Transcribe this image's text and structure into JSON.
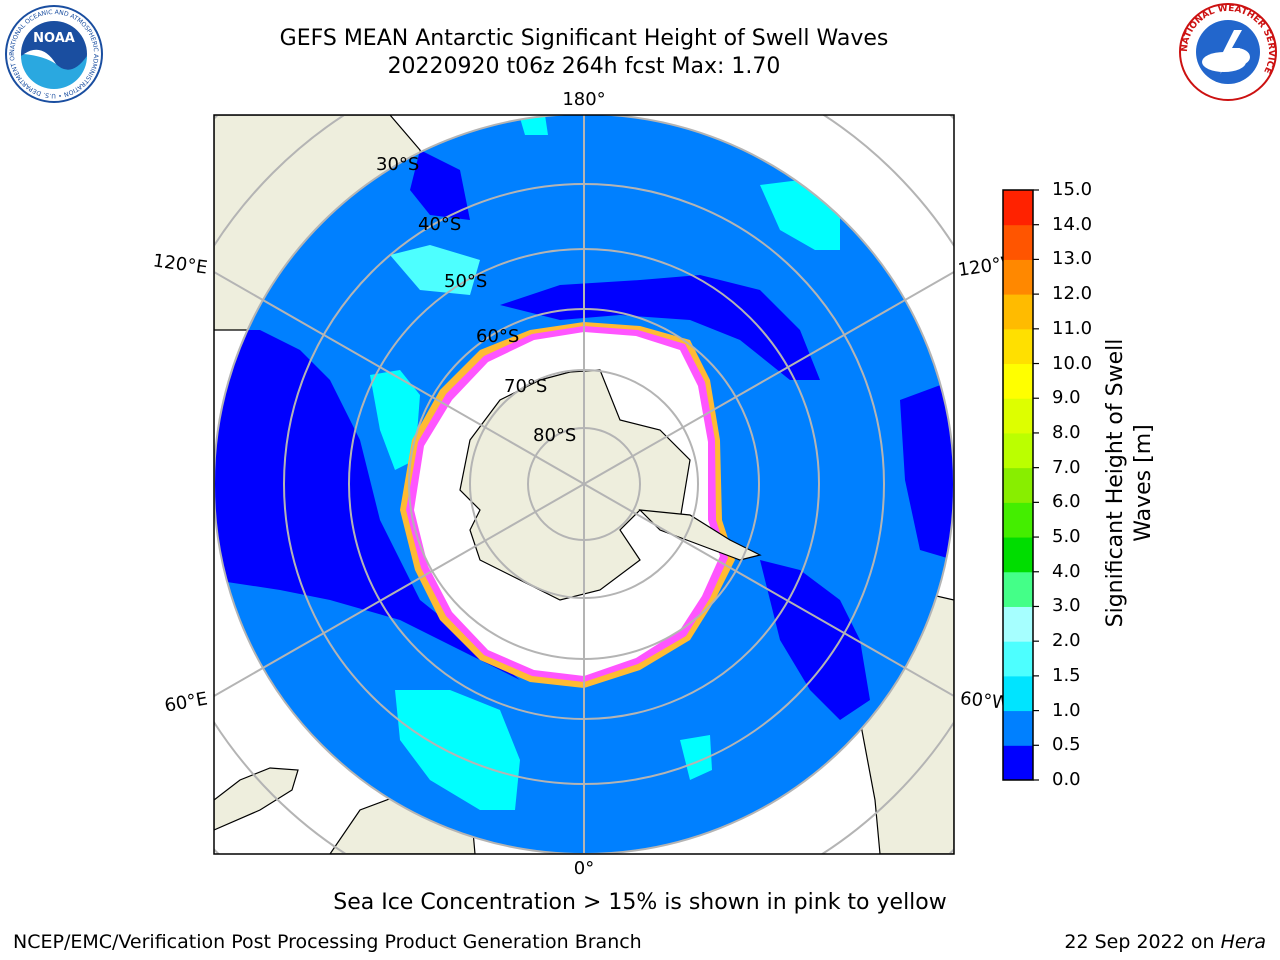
{
  "title": {
    "line1": "GEFS MEAN Antarctic Significant Height of Swell Waves",
    "line2": "20220920 t06z 264h fcst   Max: 1.70"
  },
  "map": {
    "projection": "south-polar-stereographic",
    "latitude_labels": [
      "30°S",
      "40°S",
      "50°S",
      "60°S",
      "70°S",
      "80°S"
    ],
    "longitude_labels": {
      "top": "180°",
      "bottom": "0°",
      "upper_left": "120°E",
      "lower_left": "60°E",
      "upper_right": "120°W",
      "lower_right": "60°W"
    },
    "colors": {
      "land": "#eeeedd",
      "open_ocean": "#0080ff",
      "calm_ocean": "#0000ff",
      "swell_high": "#00ffff",
      "sea_ice": "#ffffff",
      "ice_edge_pink": "#ff55ff",
      "ice_edge_yellow": "#ffbb33",
      "gridline": "#b4b4b4"
    }
  },
  "colorbar": {
    "label": "Significant Height of Swell Waves [m]",
    "ticks": [
      "0.0",
      "0.5",
      "1.0",
      "1.5",
      "2.0",
      "3.0",
      "4.0",
      "5.0",
      "6.0",
      "7.0",
      "8.0",
      "9.0",
      "10.0",
      "11.0",
      "12.0",
      "13.0",
      "14.0",
      "15.0"
    ],
    "colors": [
      "#0000ff",
      "#0080ff",
      "#00e4ff",
      "#4dffff",
      "#a6ffff",
      "#44ff88",
      "#00dd00",
      "#44ee00",
      "#88ee00",
      "#bbff00",
      "#ddff00",
      "#ffff00",
      "#ffe000",
      "#ffbb00",
      "#ff8800",
      "#ff5500",
      "#ff2200"
    ]
  },
  "note": "Sea Ice Concentration > 15% is shown in pink to yellow",
  "footer": {
    "left": "NCEP/EMC/Verification Post Processing Product Generation Branch",
    "right_prefix": "22 Sep 2022 on ",
    "right_host": "Hera"
  },
  "logos": {
    "noaa_text": "NOAA",
    "noaa_ring": "NATIONAL OCEANIC AND ATMOSPHERIC ADMINISTRATION • U.S. DEPARTMENT OF COMMERCE",
    "nws_ring": "NATIONAL WEATHER SERVICE"
  }
}
